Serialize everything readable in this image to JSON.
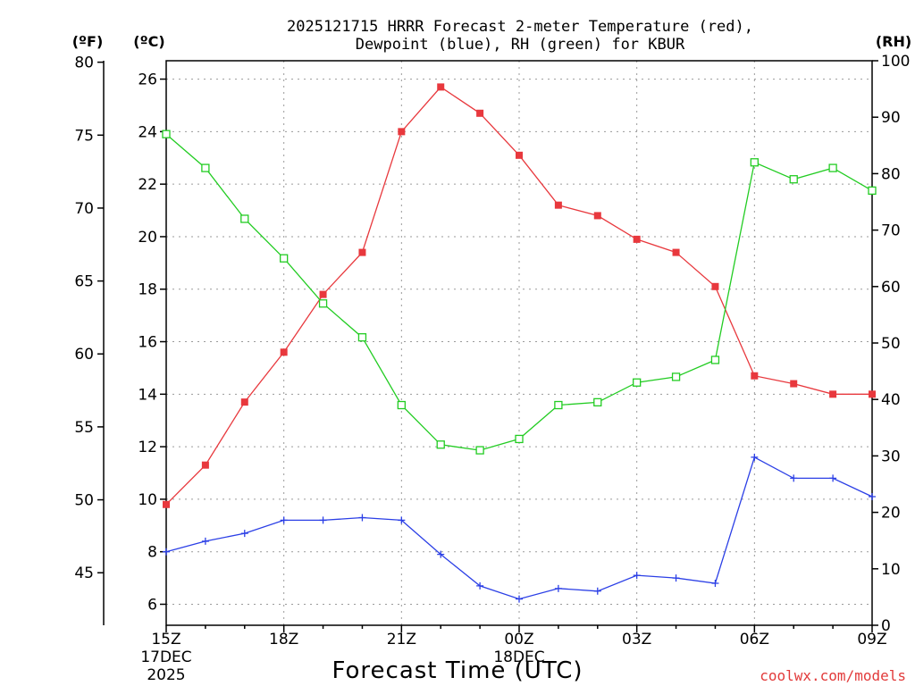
{
  "title_lines": [
    "2025121715 HRRR Forecast 2-meter Temperature (red),",
    "Dewpoint (blue), RH (green) for KBUR"
  ],
  "units": {
    "fahrenheit": "(ºF)",
    "celsius": "(ºC)",
    "rh": "(RH)"
  },
  "credit": "coolwx.com/models",
  "chart_data": {
    "type": "line",
    "title": "2025121715 HRRR Forecast 2-meter Temperature (red), Dewpoint (blue), RH (green) for KBUR",
    "xlabel": "Forecast Time (UTC)",
    "x_tick_labels": [
      {
        "hour": 0,
        "lines": [
          "15Z",
          "17DEC",
          "2025"
        ]
      },
      {
        "hour": 3,
        "lines": [
          "18Z"
        ]
      },
      {
        "hour": 6,
        "lines": [
          "21Z"
        ]
      },
      {
        "hour": 9,
        "lines": [
          "00Z",
          "18DEC"
        ]
      },
      {
        "hour": 12,
        "lines": [
          "03Z"
        ]
      },
      {
        "hour": 15,
        "lines": [
          "06Z"
        ]
      },
      {
        "hour": 18,
        "lines": [
          "09Z"
        ]
      }
    ],
    "x": [
      0,
      1,
      2,
      3,
      4,
      5,
      6,
      7,
      8,
      9,
      10,
      11,
      12,
      13,
      14,
      15,
      16,
      17,
      18
    ],
    "xlim": [
      0,
      18
    ],
    "celsius_axis": {
      "range": [
        5.2,
        26.7
      ],
      "ticks": [
        6,
        8,
        10,
        12,
        14,
        16,
        18,
        20,
        22,
        24,
        26
      ]
    },
    "fahrenheit_axis": {
      "range": [
        41.4,
        80.1
      ],
      "ticks": [
        45,
        50,
        55,
        60,
        65,
        70,
        75,
        80
      ]
    },
    "rh_axis": {
      "range": [
        0,
        100
      ],
      "ticks": [
        0,
        10,
        20,
        30,
        40,
        50,
        60,
        70,
        80,
        90,
        100
      ]
    },
    "grid": true,
    "series": [
      {
        "name": "Temperature",
        "axis": "celsius",
        "color": "#e8383d",
        "marker": "filled-square",
        "values": [
          9.8,
          11.3,
          13.7,
          15.6,
          17.8,
          19.4,
          24.0,
          25.7,
          24.7,
          23.1,
          21.2,
          20.8,
          19.9,
          19.4,
          18.1,
          14.7,
          14.4,
          14.0,
          14.0
        ]
      },
      {
        "name": "Dewpoint",
        "axis": "celsius",
        "color": "#2b3fe6",
        "marker": "plus",
        "values": [
          8.0,
          8.4,
          8.7,
          9.2,
          9.2,
          9.3,
          9.2,
          7.9,
          6.7,
          6.2,
          6.6,
          6.5,
          7.1,
          7.0,
          6.8,
          11.6,
          10.8,
          10.8,
          10.1
        ]
      },
      {
        "name": "RH",
        "axis": "rh",
        "color": "#22cc22",
        "marker": "open-square",
        "values": [
          87,
          81,
          72,
          65,
          57,
          51,
          39,
          32,
          31,
          33,
          39,
          39.5,
          43,
          44,
          47,
          82,
          79,
          81,
          77
        ]
      }
    ]
  }
}
